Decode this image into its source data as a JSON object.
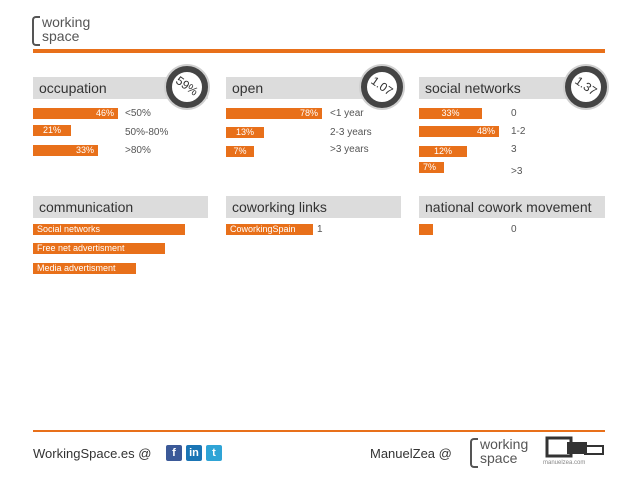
{
  "brand": {
    "line1": "working",
    "line2": "space"
  },
  "panels": {
    "occupation": {
      "title": "occupation",
      "badge": "59%",
      "bars": [
        {
          "pct": "46%",
          "label": "<50%"
        },
        {
          "pct": "21%",
          "label": "50%-80%"
        },
        {
          "pct": "33%",
          "label": ">80%"
        }
      ]
    },
    "open": {
      "title": "open",
      "badge": "1.07",
      "bars": [
        {
          "pct": "78%",
          "label": "<1 year"
        },
        {
          "pct": "13%",
          "label": "2-3 years"
        },
        {
          "pct": "7%",
          "label": ">3 years"
        }
      ]
    },
    "social": {
      "title": "social networks",
      "badge": "1.37",
      "bars": [
        {
          "pct": "33%",
          "label": "0"
        },
        {
          "pct": "48%",
          "label": "1-2"
        },
        {
          "pct": "12%",
          "label": "3"
        },
        {
          "pct": "7%",
          "label": ">3"
        }
      ]
    },
    "communication": {
      "title": "communication",
      "bars": [
        {
          "label": "Social networks"
        },
        {
          "label": "Free net advertisment"
        },
        {
          "label": "Media advertisment"
        }
      ]
    },
    "coworking": {
      "title": "coworking links",
      "bar_label": "CoworkingSpain",
      "value": "1"
    },
    "national": {
      "title": "national cowork movement",
      "value": "0"
    }
  },
  "footer": {
    "left_text": "WorkingSpace.es @",
    "right_text": "ManuelZea @",
    "icons": [
      "facebook-icon",
      "linkedin-icon",
      "twitter-icon"
    ],
    "social_glyphs": [
      "f",
      "in",
      "t"
    ],
    "site_caption": "manuelzea.com"
  },
  "colors": {
    "accent": "#e8701a",
    "header_bg": "#dcdcdc"
  }
}
